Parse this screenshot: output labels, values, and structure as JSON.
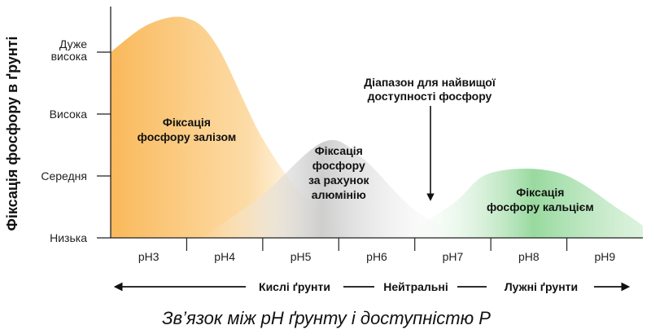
{
  "chart_data": {
    "type": "area",
    "title": "Зв’язок між pH ґрунту і доступністю P",
    "ylabel": "Фіксація фосфору в ґрунті",
    "y_categories": [
      "Низька",
      "Середня",
      "Висока",
      "Дуже висока"
    ],
    "y_tick_labels": [
      {
        "lines": [
          "Низька"
        ]
      },
      {
        "lines": [
          "Середня"
        ]
      },
      {
        "lines": [
          "Висока"
        ]
      },
      {
        "lines": [
          "Дуже",
          "висока"
        ]
      }
    ],
    "x_categories": [
      "pH3",
      "pH4",
      "pH5",
      "pH6",
      "pH7",
      "pH8",
      "pH9"
    ],
    "x_range": [
      3,
      10
    ],
    "y_range": [
      0,
      3.3
    ],
    "grid": false,
    "series": [
      {
        "label_lines": [
          "Фіксація",
          "фосфору залізом"
        ],
        "color": "#f9b552",
        "points": [
          [
            3.0,
            3.0
          ],
          [
            3.5,
            3.45
          ],
          [
            4.0,
            3.55
          ],
          [
            4.4,
            3.1
          ],
          [
            5.0,
            1.6
          ],
          [
            5.6,
            0.6
          ],
          [
            6.3,
            0.0
          ]
        ]
      },
      {
        "label_lines": [
          "Фіксація",
          "фосфору",
          "за рахунок",
          "алюмінію"
        ],
        "color": "#b5b5b5",
        "points": [
          [
            4.2,
            0.0
          ],
          [
            5.0,
            0.7
          ],
          [
            5.8,
            1.55
          ],
          [
            6.3,
            1.3
          ],
          [
            7.0,
            0.45
          ],
          [
            7.7,
            0.0
          ]
        ]
      },
      {
        "label_lines": [
          "Фіксація",
          "фосфору кальцієм"
        ],
        "color": "#7fcf86",
        "points": [
          [
            6.8,
            0.0
          ],
          [
            7.5,
            0.55
          ],
          [
            8.0,
            1.05
          ],
          [
            8.9,
            1.05
          ],
          [
            9.7,
            0.45
          ],
          [
            10.0,
            0.2
          ]
        ]
      }
    ],
    "annotation": {
      "text_lines": [
        "Діапазон для найвищої",
        "доступності фосфору"
      ],
      "x": 7.2,
      "y": 0.6
    },
    "bottom_scale": [
      "Кислі ґрунти",
      "Нейтральні",
      "Лужні ґрунти"
    ]
  }
}
